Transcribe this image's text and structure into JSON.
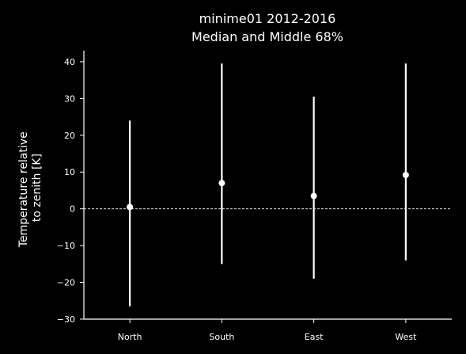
{
  "chart_data": {
    "type": "scatter",
    "title": "minime01 2012-2016",
    "subtitle": "Median and Middle 68%",
    "ylabel": "Temperature relative to zenith [K]",
    "ylabel_lines": [
      "Temperature relative",
      "to zenith [K]"
    ],
    "xlabel": "",
    "categories": [
      "North",
      "South",
      "East",
      "West"
    ],
    "median": [
      0.5,
      7,
      3.5,
      9.2
    ],
    "lower": [
      -26.5,
      -15,
      -19,
      -14
    ],
    "upper": [
      24,
      39.5,
      30.5,
      39.5
    ],
    "ylim": [
      -30,
      43
    ],
    "yticks": [
      -30,
      -20,
      -10,
      0,
      10,
      20,
      30,
      40
    ],
    "reference_line": 0,
    "grid": false,
    "colors": {
      "background": "#000000",
      "foreground": "#ffffff"
    }
  }
}
